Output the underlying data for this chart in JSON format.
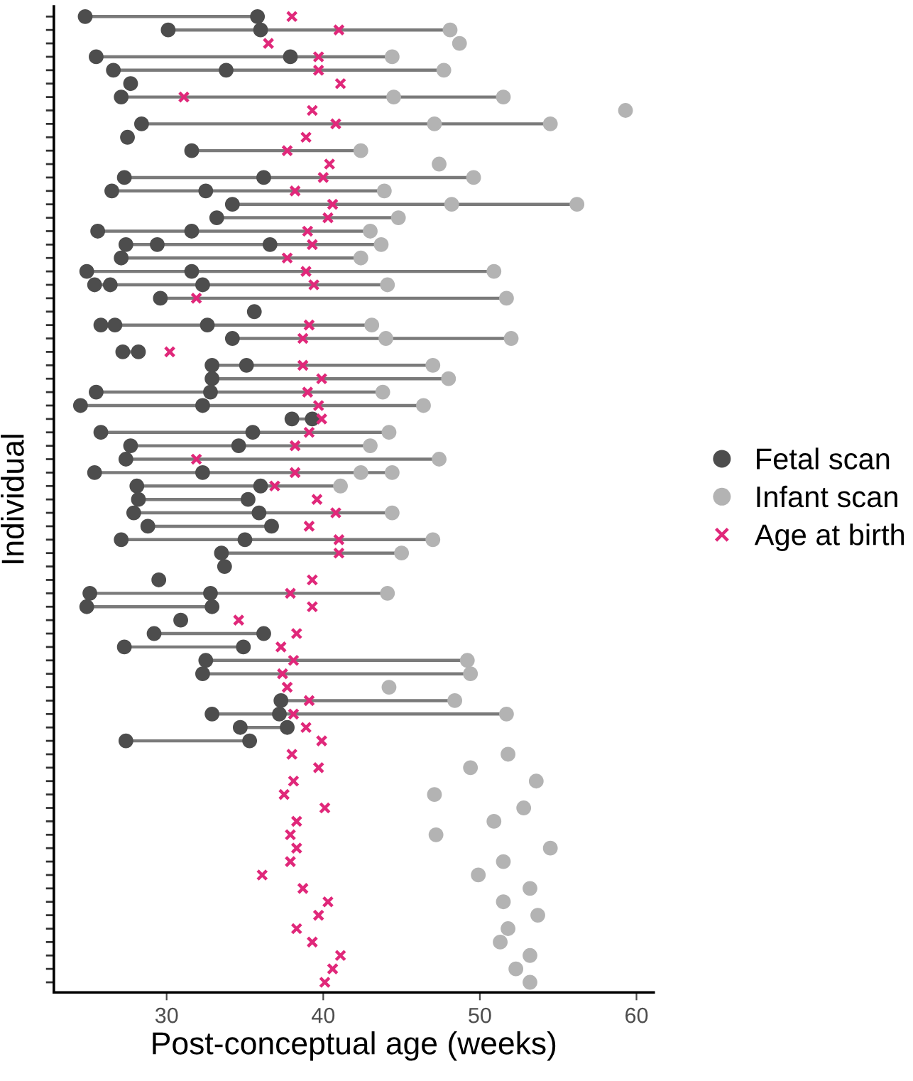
{
  "chart_data": {
    "type": "scatter",
    "orientation": "horizontal",
    "xlabel": "Post-conceptual age (weeks)",
    "ylabel": "Individual",
    "categories": [
      null,
      null,
      null,
      null,
      null,
      null,
      null,
      null,
      null,
      null,
      null,
      null,
      null,
      null,
      null,
      null,
      null,
      null,
      null,
      null,
      null,
      null,
      null,
      null,
      null,
      null,
      null,
      null,
      null,
      null,
      null,
      null,
      null,
      null,
      null,
      null,
      null,
      null,
      null,
      null,
      null,
      null,
      null,
      null,
      null,
      null,
      null,
      null,
      null,
      null,
      null,
      null,
      null,
      null,
      null,
      null,
      null,
      null,
      null,
      null,
      null,
      null,
      null,
      null,
      null,
      null,
      null,
      null,
      null,
      null,
      null,
      null,
      null
    ],
    "xlim": [
      22.8,
      61.1
    ],
    "xticks": [
      30,
      40,
      50,
      60
    ],
    "tick_labels": "x",
    "grid": false,
    "legend": "right",
    "line_style": "solid",
    "series": [
      {
        "name": "Fetal scan",
        "color": "#4d4d4d",
        "marker": "circle",
        "values": [
          24.8,
          30.1,
          null,
          25.5,
          26.6,
          27.7,
          27.1,
          null,
          28.4,
          27.5,
          31.6,
          null,
          27.3,
          26.5,
          34.2,
          33.2,
          25.6,
          27.4,
          27.1,
          24.9,
          25.4,
          29.6,
          35.6,
          25.8,
          34.2,
          27.2,
          32.9,
          32.9,
          25.5,
          24.5,
          38.0,
          25.8,
          27.7,
          27.4,
          25.4,
          28.1,
          28.2,
          27.9,
          28.8,
          27.1,
          33.5,
          33.7,
          29.5,
          25.1,
          24.9,
          30.9,
          29.2,
          27.3,
          32.5,
          32.3,
          null,
          37.3,
          32.9,
          34.7,
          27.4,
          null,
          null,
          null,
          null,
          null,
          null,
          null,
          null,
          null,
          null,
          null,
          null,
          null,
          null,
          null,
          null,
          null,
          null
        ]
      },
      {
        "color": "#4d4d4d",
        "marker": "circle",
        "values": [
          35.8,
          36.0,
          null,
          37.9,
          33.8,
          null,
          null,
          null,
          null,
          null,
          null,
          null,
          36.2,
          32.5,
          null,
          null,
          31.6,
          29.4,
          null,
          31.6,
          26.4,
          null,
          null,
          26.7,
          null,
          28.2,
          35.1,
          null,
          32.8,
          32.3,
          39.3,
          35.5,
          34.6,
          null,
          32.3,
          36.0,
          35.2,
          35.9,
          36.7,
          35.0,
          null,
          null,
          null,
          32.8,
          32.9,
          null,
          36.2,
          34.9,
          null,
          null,
          null,
          null,
          37.2,
          37.7,
          35.3,
          null,
          null,
          null,
          null,
          null,
          null,
          null,
          null,
          null,
          null,
          null,
          null,
          null,
          null,
          null,
          null,
          null,
          null
        ]
      },
      {
        "color": "#4d4d4d",
        "marker": "circle",
        "values": [
          null,
          null,
          null,
          null,
          null,
          null,
          null,
          null,
          null,
          null,
          null,
          null,
          null,
          null,
          null,
          null,
          null,
          36.6,
          null,
          null,
          32.3,
          null,
          null,
          32.6,
          null,
          null,
          null,
          null,
          null,
          null,
          null,
          null,
          null,
          null,
          null,
          null,
          null,
          null,
          null,
          null,
          null,
          null,
          null,
          null,
          null,
          null,
          null,
          null,
          null,
          null,
          null,
          null,
          null,
          null,
          null,
          null,
          null,
          null,
          null,
          null,
          null,
          null,
          null,
          null,
          null,
          null,
          null,
          null,
          null,
          null,
          null,
          null,
          null
        ]
      },
      {
        "name": "Infant scan",
        "color": "#b3b3b3",
        "marker": "circle",
        "values": [
          null,
          48.1,
          48.7,
          44.4,
          47.7,
          null,
          44.5,
          59.3,
          47.1,
          null,
          42.4,
          47.4,
          49.6,
          43.9,
          48.2,
          44.8,
          43.0,
          43.7,
          42.4,
          50.9,
          44.1,
          51.7,
          null,
          43.1,
          44.0,
          null,
          47.0,
          48.0,
          43.8,
          46.4,
          null,
          44.2,
          43.0,
          47.4,
          42.4,
          41.1,
          null,
          44.4,
          null,
          47.0,
          45.0,
          null,
          null,
          44.1,
          null,
          null,
          null,
          null,
          49.2,
          49.4,
          44.2,
          48.4,
          51.7,
          null,
          null,
          51.8,
          49.4,
          53.6,
          47.1,
          52.8,
          50.9,
          47.2,
          54.5,
          51.5,
          49.9,
          53.2,
          51.5,
          53.7,
          51.8,
          51.3,
          53.2,
          52.3,
          53.2
        ]
      },
      {
        "color": "#b3b3b3",
        "marker": "circle",
        "values": [
          null,
          null,
          null,
          null,
          null,
          null,
          51.5,
          null,
          54.5,
          null,
          null,
          null,
          null,
          null,
          56.2,
          null,
          null,
          null,
          null,
          null,
          null,
          null,
          null,
          null,
          52.0,
          null,
          null,
          null,
          null,
          null,
          null,
          null,
          null,
          null,
          44.4,
          null,
          null,
          null,
          null,
          null,
          null,
          null,
          null,
          null,
          null,
          null,
          null,
          null,
          null,
          null,
          null,
          null,
          null,
          null,
          null,
          null,
          null,
          null,
          null,
          null,
          null,
          null,
          null,
          null,
          null,
          null,
          null,
          null,
          null,
          null,
          null,
          null,
          null
        ]
      },
      {
        "name": "Age at birth",
        "color": "#e0287a",
        "marker": "cross",
        "values": [
          38.0,
          41.0,
          36.5,
          39.7,
          39.7,
          41.1,
          31.1,
          39.3,
          40.8,
          38.9,
          37.7,
          40.4,
          40.0,
          38.2,
          40.6,
          40.3,
          39.0,
          39.3,
          37.7,
          38.9,
          39.4,
          31.9,
          null,
          39.1,
          38.7,
          30.2,
          38.7,
          39.9,
          39.0,
          39.7,
          39.9,
          39.1,
          38.2,
          31.9,
          38.2,
          36.9,
          39.6,
          40.8,
          39.1,
          41.0,
          41.0,
          null,
          39.3,
          37.9,
          39.3,
          34.6,
          38.3,
          37.3,
          38.1,
          37.4,
          37.7,
          39.1,
          38.1,
          38.9,
          39.9,
          38.0,
          39.7,
          38.1,
          37.5,
          40.1,
          38.3,
          37.9,
          38.3,
          37.9,
          36.1,
          38.7,
          40.3,
          39.7,
          38.3,
          39.3,
          41.1,
          40.6,
          40.1
        ]
      }
    ]
  }
}
